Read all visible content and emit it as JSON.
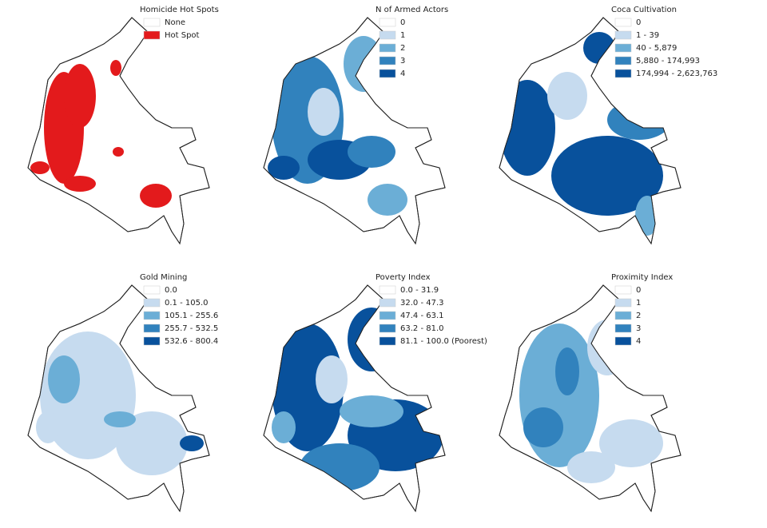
{
  "panels": [
    {
      "title": "Homicide Hot Spots",
      "legend": [
        {
          "label": "None",
          "color": "#ffffff"
        },
        {
          "label": "Hot Spot",
          "color": "#e31a1c"
        }
      ]
    },
    {
      "title": "N of Armed Actors",
      "legend": [
        {
          "label": "0",
          "color": "#ffffff"
        },
        {
          "label": "1",
          "color": "#c6dbef"
        },
        {
          "label": "2",
          "color": "#6baed6"
        },
        {
          "label": "3",
          "color": "#3182bd"
        },
        {
          "label": "4",
          "color": "#08519c"
        }
      ]
    },
    {
      "title": "Coca Cultivation",
      "legend": [
        {
          "label": "0",
          "color": "#ffffff"
        },
        {
          "label": "1 - 39",
          "color": "#c6dbef"
        },
        {
          "label": "40 - 5,879",
          "color": "#6baed6"
        },
        {
          "label": "5,880 - 174,993",
          "color": "#3182bd"
        },
        {
          "label": "174,994 - 2,623,763",
          "color": "#08519c"
        }
      ]
    },
    {
      "title": "Gold Mining",
      "legend": [
        {
          "label": "0.0",
          "color": "#ffffff"
        },
        {
          "label": "0.1 - 105.0",
          "color": "#c6dbef"
        },
        {
          "label": "105.1 - 255.6",
          "color": "#6baed6"
        },
        {
          "label": "255.7 - 532.5",
          "color": "#3182bd"
        },
        {
          "label": "532.6 - 800.4",
          "color": "#08519c"
        }
      ]
    },
    {
      "title": "Poverty Index",
      "legend": [
        {
          "label": "0.0 - 31.9",
          "color": "#ffffff"
        },
        {
          "label": "32.0 - 47.3",
          "color": "#c6dbef"
        },
        {
          "label": "47.4 - 63.1",
          "color": "#6baed6"
        },
        {
          "label": "63.2 - 81.0",
          "color": "#3182bd"
        },
        {
          "label": "81.1 - 100.0 (Poorest)",
          "color": "#08519c"
        }
      ]
    },
    {
      "title": "Proximity Index",
      "legend": [
        {
          "label": "0",
          "color": "#ffffff"
        },
        {
          "label": "1",
          "color": "#c6dbef"
        },
        {
          "label": "2",
          "color": "#6baed6"
        },
        {
          "label": "3",
          "color": "#3182bd"
        },
        {
          "label": "4",
          "color": "#08519c"
        }
      ]
    }
  ]
}
